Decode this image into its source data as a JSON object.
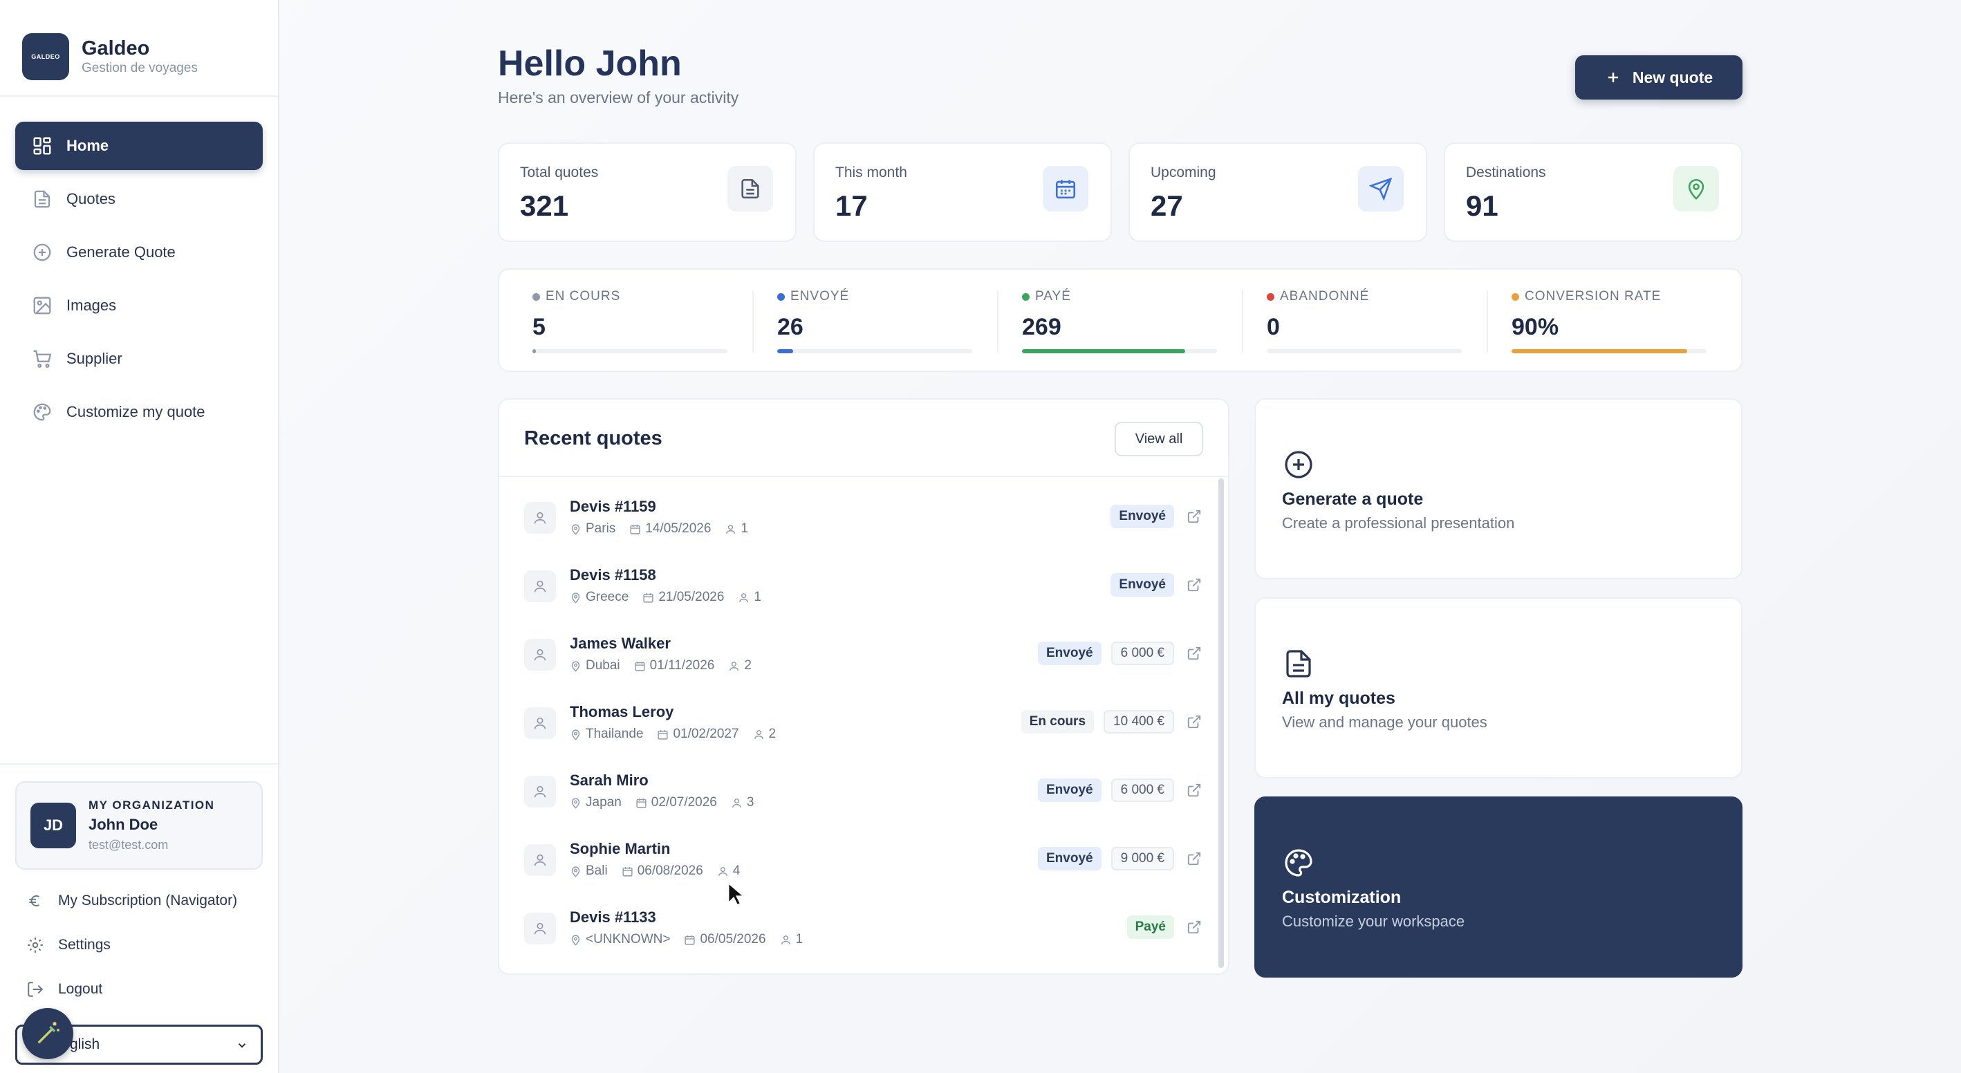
{
  "brand": {
    "logo_text": "GALDEO",
    "name": "Galdeo",
    "subtitle": "Gestion de voyages"
  },
  "nav": [
    {
      "label": "Home",
      "icon": "grid-icon",
      "active": true
    },
    {
      "label": "Quotes",
      "icon": "document-icon"
    },
    {
      "label": "Generate Quote",
      "icon": "plus-circle-icon"
    },
    {
      "label": "Images",
      "icon": "image-icon"
    },
    {
      "label": "Supplier",
      "icon": "cart-icon"
    },
    {
      "label": "Customize my quote",
      "icon": "palette-icon"
    }
  ],
  "organization": {
    "label": "MY ORGANIZATION",
    "initials": "JD",
    "name": "John Doe",
    "email": "test@test.com"
  },
  "sidebar_links": {
    "subscription": "My Subscription (Navigator)",
    "settings": "Settings",
    "logout": "Logout"
  },
  "language": {
    "selected": "glish"
  },
  "header": {
    "greeting": "Hello John",
    "subtitle": "Here's an overview of your activity",
    "new_quote": "New quote"
  },
  "stats": [
    {
      "label": "Total quotes",
      "value": "321",
      "icon": "document-icon",
      "color": "#4f5970",
      "bg": "#f1f3f7"
    },
    {
      "label": "This month",
      "value": "17",
      "icon": "calendar-icon",
      "color": "#3b6fd8",
      "bg": "#eaf0fb"
    },
    {
      "label": "Upcoming",
      "value": "27",
      "icon": "send-icon",
      "color": "#3b6fd8",
      "bg": "#eaf0fb"
    },
    {
      "label": "Destinations",
      "value": "91",
      "icon": "map-pin-icon",
      "color": "#3aa55c",
      "bg": "#e8f6ec"
    }
  ],
  "statuses": [
    {
      "label": "EN COURS",
      "value": "5",
      "color": "#8f98ab",
      "progress": 0.016
    },
    {
      "label": "ENVOYÉ",
      "value": "26",
      "color": "#3b6fd8",
      "progress": 0.081
    },
    {
      "label": "PAYÉ",
      "value": "269",
      "color": "#3aa55c",
      "progress": 0.838
    },
    {
      "label": "ABANDONNÉ",
      "value": "0",
      "color": "#e0443c",
      "progress": 0
    },
    {
      "label": "CONVERSION RATE",
      "value": "90%",
      "color": "#e9a23b",
      "progress": 0.9
    }
  ],
  "recent": {
    "title": "Recent quotes",
    "view_all": "View all",
    "rows": [
      {
        "name": "Devis #1159",
        "place": "Paris",
        "date": "14/05/2026",
        "pax": "1",
        "status": "Envoyé",
        "status_kind": "envoye",
        "price": ""
      },
      {
        "name": "Devis #1158",
        "place": "Greece",
        "date": "21/05/2026",
        "pax": "1",
        "status": "Envoyé",
        "status_kind": "envoye",
        "price": ""
      },
      {
        "name": "James Walker",
        "place": "Dubai",
        "date": "01/11/2026",
        "pax": "2",
        "status": "Envoyé",
        "status_kind": "envoye",
        "price": "6 000 €"
      },
      {
        "name": "Thomas Leroy",
        "place": "Thailande",
        "date": "01/02/2027",
        "pax": "2",
        "status": "En cours",
        "status_kind": "encours",
        "price": "10 400 €"
      },
      {
        "name": "Sarah Miro",
        "place": "Japan",
        "date": "02/07/2026",
        "pax": "3",
        "status": "Envoyé",
        "status_kind": "envoye",
        "price": "6 000 €"
      },
      {
        "name": "Sophie Martin",
        "place": "Bali",
        "date": "06/08/2026",
        "pax": "4",
        "status": "Envoyé",
        "status_kind": "envoye",
        "price": "9 000 €"
      },
      {
        "name": "Devis #1133",
        "place": "<UNKNOWN>",
        "date": "06/05/2026",
        "pax": "1",
        "status": "Payé",
        "status_kind": "paye",
        "price": ""
      }
    ]
  },
  "cards": [
    {
      "title": "Generate a quote",
      "subtitle": "Create a professional presentation",
      "icon": "plus-circle-icon",
      "dark": false
    },
    {
      "title": "All my quotes",
      "subtitle": "View and manage your quotes",
      "icon": "document-icon",
      "dark": false
    },
    {
      "title": "Customization",
      "subtitle": "Customize your workspace",
      "icon": "palette-icon",
      "dark": true
    }
  ]
}
